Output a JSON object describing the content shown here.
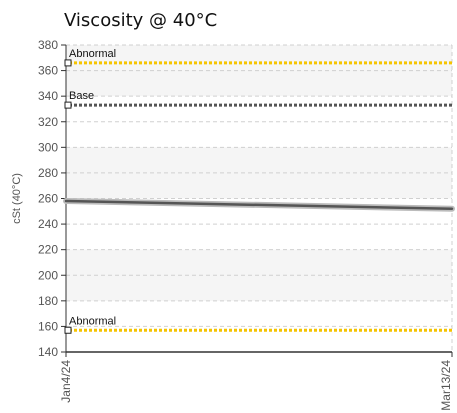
{
  "chart_data": {
    "type": "line",
    "title": "Viscosity @ 40°C",
    "xlabel": "",
    "ylabel": "cSt (40°C)",
    "ylim": [
      140,
      380
    ],
    "yticks": [
      140,
      160,
      180,
      200,
      220,
      240,
      260,
      280,
      300,
      320,
      340,
      360,
      380
    ],
    "x": [
      "Jan4/24",
      "Mar13/24"
    ],
    "grid": true,
    "series": [
      {
        "values": [
          258,
          252
        ],
        "color": "#555555"
      }
    ],
    "reference_lines": [
      {
        "label": "Abnormal",
        "value": 366,
        "color": "#f5c400"
      },
      {
        "label": "Base",
        "value": 333,
        "color": "#555555"
      },
      {
        "label": "Abnormal",
        "value": 157,
        "color": "#f5c400"
      }
    ]
  }
}
